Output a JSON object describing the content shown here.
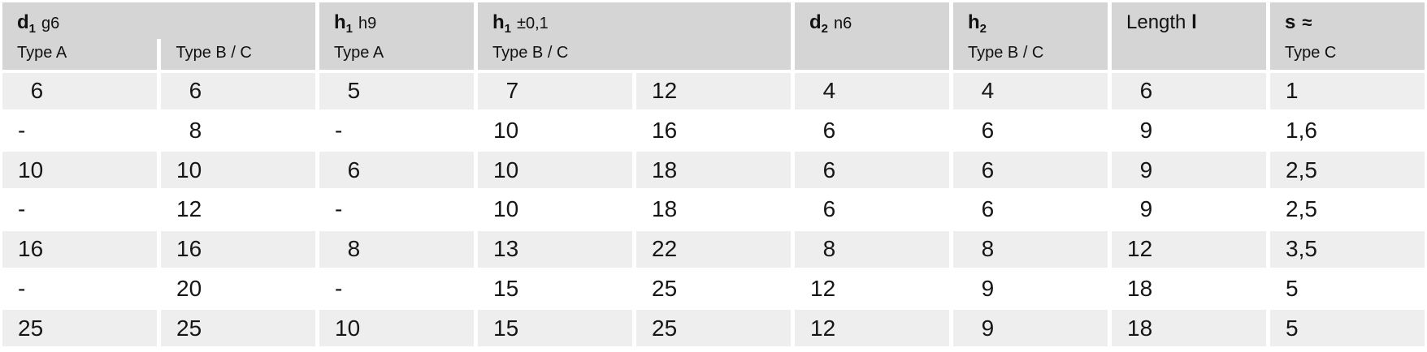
{
  "header": {
    "d1": {
      "sym": "d",
      "sub": "1",
      "tol": "g6",
      "sub_a": "Type A",
      "sub_bc": "Type B / C"
    },
    "h1h9": {
      "sym": "h",
      "sub": "1",
      "tol": "h9",
      "sub_a": "Type A"
    },
    "h1tol": {
      "sym": "h",
      "sub": "1",
      "tol": "±0,1",
      "sub_bc": "Type B / C"
    },
    "d2": {
      "sym": "d",
      "sub": "2",
      "tol": "n6"
    },
    "h2": {
      "sym": "h",
      "sub": "2",
      "sub_bc": "Type B / C"
    },
    "length": {
      "pre": "Length",
      "sym": "l"
    },
    "s": {
      "sym": "s",
      "tol": "≈",
      "sub_c": "Type C"
    }
  },
  "rows": [
    [
      "6",
      "6",
      "5",
      "7",
      "12",
      "4",
      "4",
      "6",
      "1"
    ],
    [
      "-",
      "8",
      "-",
      "10",
      "16",
      "6",
      "6",
      "9",
      "1,6"
    ],
    [
      "10",
      "10",
      "6",
      "10",
      "18",
      "6",
      "6",
      "9",
      "2,5"
    ],
    [
      "-",
      "12",
      "-",
      "10",
      "18",
      "6",
      "6",
      "9",
      "2,5"
    ],
    [
      "16",
      "16",
      "8",
      "13",
      "22",
      "8",
      "8",
      "12",
      "3,5"
    ],
    [
      "-",
      "20",
      "-",
      "15",
      "25",
      "12",
      "9",
      "18",
      "5"
    ],
    [
      "25",
      "25",
      "10",
      "15",
      "25",
      "12",
      "9",
      "18",
      "5"
    ]
  ],
  "colors": {
    "header_bg": "#d5d5d5",
    "row_odd_bg": "#eeeeee",
    "row_even_bg": "#ffffff",
    "gap": "#ffffff",
    "text": "#161616"
  }
}
